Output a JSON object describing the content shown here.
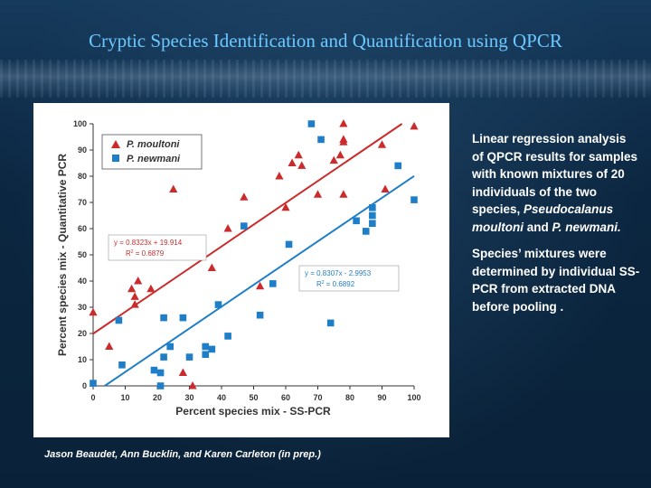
{
  "slide": {
    "title": "Cryptic Species Identification and Quantification using QPCR",
    "credit": "Jason Beaudet, Ann Bucklin, and Karen Carleton (in prep.)"
  },
  "description": {
    "p1_text": "Linear regression analysis of QPCR results for samples with known mixtures of 20 individuals of the two species, ",
    "p1_italic1": "Pseudocalanus moultoni",
    "p1_and": " and ",
    "p1_italic2": "P. newmani.",
    "p2": "Species’ mixtures were determined by individual SS-PCR from extracted DNA before pooling ."
  },
  "chart_data": {
    "type": "scatter",
    "title": "",
    "xlabel": "Percent species mix - SS-PCR",
    "ylabel": "Percent species mix - Quantitative PCR",
    "xlim": [
      0,
      100
    ],
    "ylim": [
      0,
      100
    ],
    "xticks": [
      0,
      10,
      20,
      30,
      40,
      50,
      60,
      70,
      80,
      90,
      100
    ],
    "yticks": [
      0,
      10,
      20,
      30,
      40,
      50,
      60,
      70,
      80,
      90,
      100
    ],
    "grid": false,
    "legend_position": "top-left",
    "series": [
      {
        "name": "P. moultoni",
        "color": "#cc2b2b",
        "marker": "triangle",
        "points": [
          [
            0,
            28
          ],
          [
            5,
            15
          ],
          [
            12,
            37
          ],
          [
            13,
            34
          ],
          [
            13,
            31
          ],
          [
            14,
            40
          ],
          [
            18,
            37
          ],
          [
            25,
            75
          ],
          [
            28,
            5
          ],
          [
            31,
            0
          ],
          [
            37,
            45
          ],
          [
            42,
            60
          ],
          [
            47,
            72
          ],
          [
            52,
            38
          ],
          [
            58,
            80
          ],
          [
            60,
            68
          ],
          [
            62,
            85
          ],
          [
            64,
            88
          ],
          [
            65,
            84
          ],
          [
            70,
            73
          ],
          [
            75,
            86
          ],
          [
            77,
            88
          ],
          [
            78,
            73
          ],
          [
            78,
            93
          ],
          [
            78,
            94
          ],
          [
            78,
            100
          ],
          [
            90,
            92
          ],
          [
            91,
            75
          ],
          [
            100,
            99
          ]
        ],
        "fit": {
          "slope": 0.8323,
          "intercept": 19.914,
          "equation": "y = 0.8323x + 19.914",
          "r2_label": "R",
          "r2_value": " = 0.6879"
        }
      },
      {
        "name": "P. newmani",
        "color": "#1f7ec8",
        "marker": "square",
        "points": [
          [
            0,
            1
          ],
          [
            8,
            25
          ],
          [
            9,
            8
          ],
          [
            19,
            6
          ],
          [
            21,
            5
          ],
          [
            21,
            0
          ],
          [
            22,
            26
          ],
          [
            22,
            11
          ],
          [
            24,
            15
          ],
          [
            28,
            26
          ],
          [
            30,
            11
          ],
          [
            35,
            15
          ],
          [
            35,
            12
          ],
          [
            37,
            14
          ],
          [
            39,
            31
          ],
          [
            42,
            19
          ],
          [
            47,
            61
          ],
          [
            52,
            27
          ],
          [
            56,
            39
          ],
          [
            61,
            54
          ],
          [
            68,
            100
          ],
          [
            71,
            94
          ],
          [
            74,
            24
          ],
          [
            82,
            63
          ],
          [
            85,
            59
          ],
          [
            87,
            68
          ],
          [
            87,
            65
          ],
          [
            87,
            62
          ],
          [
            95,
            84
          ],
          [
            100,
            71
          ]
        ],
        "fit": {
          "slope": 0.8307,
          "intercept": -2.9953,
          "equation": "y = 0.8307x - 2.9953",
          "r2_label": "R",
          "r2_value": " = 0.6892"
        }
      }
    ]
  }
}
